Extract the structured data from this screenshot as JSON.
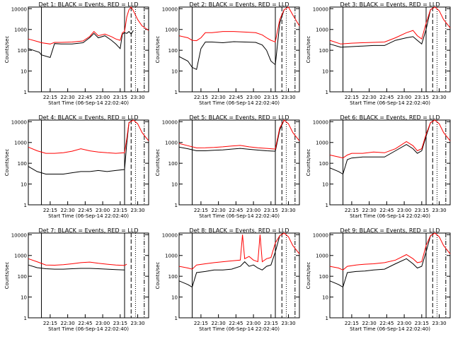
{
  "chart_data": [
    {
      "type": "line",
      "title": "Det 1: BLACK = Events, RED = LLD",
      "ylabel": "Counts/sec",
      "xlabel": "Start Time (06-Sep-14 22:02:40)",
      "x_ticks": [
        "22:15",
        "22:30",
        "22:45",
        "23:00",
        "23:15",
        "23:30"
      ],
      "y_ticks": [
        "1",
        "10",
        "100",
        "1000",
        "10000"
      ],
      "yscale": "log",
      "ylim": [
        1,
        12000
      ],
      "xlim_min": [
        0,
        55
      ],
      "series": [
        {
          "color": "#000000",
          "x": [
            0,
            5,
            6,
            10,
            12,
            15,
            20,
            25,
            28,
            30,
            32,
            35,
            38,
            40,
            42,
            43,
            44,
            45,
            46,
            47,
            48
          ],
          "y": [
            120,
            80,
            60,
            45,
            210,
            200,
            200,
            230,
            400,
            650,
            400,
            500,
            300,
            200,
            120,
            600,
            700,
            650,
            800,
            600,
            900
          ]
        },
        {
          "color": "#ff0000",
          "x": [
            0,
            5,
            6,
            10,
            12,
            15,
            20,
            25,
            28,
            30,
            32,
            35,
            38,
            40,
            42,
            43,
            44,
            45,
            46,
            47,
            48,
            50,
            52,
            55
          ],
          "y": [
            350,
            250,
            230,
            200,
            240,
            240,
            250,
            280,
            450,
            800,
            500,
            600,
            450,
            350,
            300,
            700,
            800,
            4000,
            9000,
            12000,
            8000,
            3000,
            1500,
            900
          ]
        }
      ],
      "markers": {
        "S": 4,
        "F": 6,
        "G": 44,
        "E": 47
      }
    },
    {
      "type": "line",
      "title": "Det 2: BLACK = Events, RED = LLD",
      "ylabel": "Counts/sec",
      "xlabel": "Start Time (06-Sep-14 22:02:40)",
      "x_ticks": [
        "22:15",
        "22:30",
        "22:45",
        "23:00",
        "23:15",
        "23:30"
      ],
      "y_ticks": [
        "1",
        "10",
        "100",
        "1000",
        "10000"
      ],
      "yscale": "log",
      "xlim_min": [
        0,
        55
      ],
      "series": [
        {
          "color": "#000000",
          "x": [
            0,
            4,
            6,
            8,
            10,
            12,
            15,
            20,
            25,
            30,
            35,
            38,
            40,
            42,
            44,
            46,
            48
          ],
          "y": [
            50,
            30,
            15,
            12,
            120,
            250,
            250,
            230,
            260,
            250,
            240,
            180,
            100,
            30,
            20,
            2000,
            9000
          ]
        },
        {
          "color": "#ff0000",
          "x": [
            0,
            4,
            6,
            8,
            10,
            12,
            15,
            20,
            25,
            30,
            35,
            38,
            40,
            42,
            44,
            46,
            48,
            50,
            52,
            55
          ],
          "y": [
            500,
            400,
            300,
            290,
            400,
            700,
            700,
            800,
            800,
            750,
            700,
            550,
            400,
            300,
            250,
            3000,
            9000,
            12000,
            5000,
            1500
          ]
        }
      ],
      "markers": {
        "S": 4,
        "F": 6,
        "G": 44,
        "E": 47
      }
    },
    {
      "type": "line",
      "title": "Det 3: BLACK = Events, RED = LLD",
      "ylabel": "Counts/sec",
      "xlabel": "Start Time (06-Sep-14 22:02:40)",
      "x_ticks": [
        "22:15",
        "22:30",
        "22:45",
        "23:00",
        "23:15",
        "23:30"
      ],
      "y_ticks": [
        "1",
        "10",
        "100",
        "1000",
        "10000"
      ],
      "yscale": "log",
      "xlim_min": [
        0,
        55
      ],
      "series": [
        {
          "color": "#000000",
          "x": [
            0,
            5,
            10,
            15,
            20,
            25,
            30,
            35,
            38,
            40,
            42,
            44,
            46,
            48
          ],
          "y": [
            200,
            140,
            150,
            160,
            170,
            170,
            300,
            400,
            450,
            300,
            200,
            1000,
            9000,
            12000
          ]
        },
        {
          "color": "#ff0000",
          "x": [
            0,
            5,
            10,
            15,
            20,
            25,
            30,
            35,
            38,
            40,
            42,
            44,
            46,
            48,
            50,
            52,
            55
          ],
          "y": [
            300,
            200,
            220,
            230,
            240,
            250,
            400,
            700,
            900,
            500,
            350,
            2000,
            9000,
            12000,
            8000,
            3000,
            1200
          ]
        }
      ],
      "markers": {
        "S": 4,
        "F": 6,
        "G": 44,
        "E": 47
      }
    },
    {
      "type": "line",
      "title": "Det 4: BLACK = Events, RED = LLD",
      "ylabel": "Counts/sec",
      "xlabel": "Start Time (06-Sep-14 22:02:40)",
      "x_ticks": [
        "22:15",
        "22:30",
        "22:45",
        "23:00",
        "23:15",
        "23:30"
      ],
      "y_ticks": [
        "1",
        "10",
        "100",
        "1000",
        "10000"
      ],
      "yscale": "log",
      "xlim_min": [
        0,
        55
      ],
      "series": [
        {
          "color": "#000000",
          "x": [
            0,
            4,
            8,
            12,
            16,
            20,
            24,
            28,
            32,
            36,
            40,
            44,
            45,
            46,
            48
          ],
          "y": [
            70,
            40,
            30,
            30,
            30,
            35,
            40,
            40,
            45,
            40,
            45,
            50,
            900,
            9000,
            12000
          ]
        },
        {
          "color": "#ff0000",
          "x": [
            0,
            4,
            8,
            12,
            16,
            20,
            24,
            28,
            32,
            36,
            40,
            44,
            45,
            46,
            48,
            50,
            52,
            55
          ],
          "y": [
            600,
            400,
            300,
            300,
            320,
            380,
            500,
            400,
            350,
            320,
            300,
            320,
            1500,
            9000,
            12000,
            8000,
            3000,
            1200
          ]
        }
      ],
      "markers": {
        "S": 1,
        "F": 6,
        "G": 44,
        "E": 47
      }
    },
    {
      "type": "line",
      "title": "Det 5: BLACK = Events, RED = LLD",
      "ylabel": "Counts/sec",
      "xlabel": "Start Time (06-Sep-14 22:02:40)",
      "x_ticks": [
        "22:15",
        "22:30",
        "22:45",
        "23:00",
        "23:15",
        "23:30"
      ],
      "y_ticks": [
        "1",
        "10",
        "100",
        "1000",
        "10000"
      ],
      "yscale": "log",
      "xlim_min": [
        0,
        55
      ],
      "series": [
        {
          "color": "#000000",
          "x": [
            0,
            4,
            8,
            12,
            16,
            20,
            24,
            28,
            32,
            36,
            40,
            44,
            46,
            48
          ],
          "y": [
            600,
            500,
            400,
            400,
            420,
            440,
            480,
            520,
            470,
            430,
            400,
            380,
            4000,
            12000
          ]
        },
        {
          "color": "#ff0000",
          "x": [
            0,
            4,
            8,
            12,
            16,
            20,
            24,
            28,
            32,
            36,
            40,
            44,
            46,
            48,
            50,
            52,
            55
          ],
          "y": [
            900,
            700,
            550,
            560,
            580,
            620,
            680,
            720,
            620,
            560,
            520,
            480,
            5000,
            12000,
            8000,
            3000,
            1200
          ]
        }
      ],
      "markers": {
        "S": 1,
        "F": 6,
        "G": 44,
        "E": 47
      }
    },
    {
      "type": "line",
      "title": "Det 6: BLACK = Events, RED = LLD",
      "ylabel": "Counts/sec",
      "xlabel": "Start Time (06-Sep-14 22:02:40)",
      "x_ticks": [
        "22:15",
        "22:30",
        "22:45",
        "23:00",
        "23:15",
        "23:30"
      ],
      "y_ticks": [
        "1",
        "10",
        "100",
        "1000",
        "10000"
      ],
      "yscale": "log",
      "xlim_min": [
        0,
        55
      ],
      "series": [
        {
          "color": "#000000",
          "x": [
            0,
            4,
            6,
            8,
            10,
            15,
            20,
            25,
            30,
            35,
            38,
            40,
            42,
            44,
            46,
            48
          ],
          "y": [
            60,
            40,
            30,
            150,
            180,
            200,
            200,
            200,
            400,
            800,
            500,
            300,
            400,
            2000,
            9000,
            12000
          ]
        },
        {
          "color": "#ff0000",
          "x": [
            0,
            4,
            6,
            8,
            10,
            15,
            20,
            25,
            30,
            35,
            38,
            40,
            42,
            44,
            46,
            48,
            50,
            52,
            55
          ],
          "y": [
            250,
            200,
            180,
            250,
            300,
            300,
            350,
            320,
            500,
            1100,
            700,
            400,
            500,
            2500,
            9000,
            12000,
            8000,
            3000,
            1200
          ]
        }
      ],
      "markers": {
        "S": 4,
        "F": 6,
        "G": 44,
        "E": 47
      }
    },
    {
      "type": "line",
      "title": "Det 7: BLACK = Events, RED = LLD",
      "ylabel": "Counts/sec",
      "xlabel": "Start Time (06-Sep-14 22:02:40)",
      "x_ticks": [
        "22:15",
        "22:30",
        "22:45",
        "23:00",
        "23:15",
        "23:30"
      ],
      "y_ticks": [
        "1",
        "10",
        "100",
        "1000",
        "10000"
      ],
      "yscale": "log",
      "xlim_min": [
        0,
        55
      ],
      "series": [
        {
          "color": "#000000",
          "x": [
            0,
            4,
            8,
            12,
            16,
            20,
            24,
            28,
            32,
            36,
            40,
            44
          ],
          "y": [
            350,
            260,
            230,
            220,
            220,
            230,
            240,
            240,
            230,
            220,
            210,
            200
          ]
        },
        {
          "color": "#ff0000",
          "x": [
            0,
            4,
            8,
            12,
            16,
            20,
            24,
            28,
            32,
            36,
            40,
            44,
            45
          ],
          "y": [
            700,
            500,
            350,
            340,
            360,
            400,
            450,
            480,
            420,
            380,
            350,
            330,
            380
          ]
        }
      ],
      "markers": {
        "S": 1,
        "F": 6,
        "G": 44,
        "E": 47
      }
    },
    {
      "type": "line",
      "title": "Det 8: BLACK = Events, RED = LLD",
      "ylabel": "Counts/sec",
      "xlabel": "Start Time (06-Sep-14 22:02:40)",
      "x_ticks": [
        "22:15",
        "22:30",
        "22:45",
        "23:00",
        "23:15",
        "23:30"
      ],
      "y_ticks": [
        "1",
        "10",
        "100",
        "1000",
        "10000"
      ],
      "yscale": "log",
      "xlim_min": [
        0,
        55
      ],
      "series": [
        {
          "color": "#000000",
          "x": [
            0,
            4,
            6,
            8,
            12,
            16,
            20,
            24,
            28,
            30,
            32,
            34,
            36,
            38,
            40,
            42,
            44,
            46,
            48
          ],
          "y": [
            60,
            40,
            30,
            150,
            170,
            200,
            200,
            220,
            300,
            500,
            300,
            350,
            250,
            200,
            300,
            350,
            1500,
            9000,
            12000
          ]
        },
        {
          "color": "#ff0000",
          "x": [
            0,
            4,
            6,
            8,
            12,
            16,
            20,
            24,
            28,
            29,
            30,
            32,
            34,
            36,
            37,
            38,
            40,
            42,
            44,
            46,
            48,
            50,
            52,
            55
          ],
          "y": [
            300,
            250,
            220,
            350,
            400,
            450,
            500,
            550,
            600,
            10000,
            700,
            900,
            600,
            500,
            10000,
            500,
            700,
            800,
            4000,
            9000,
            12000,
            8000,
            3000,
            1200
          ]
        }
      ],
      "markers": {
        "S": 4,
        "F": 6,
        "G": 44,
        "E": 47
      }
    },
    {
      "type": "line",
      "title": "Det 9: BLACK = Events, RED = LLD",
      "ylabel": "Counts/sec",
      "xlabel": "Start Time (06-Sep-14 22:02:40)",
      "x_ticks": [
        "22:15",
        "22:30",
        "22:45",
        "23:00",
        "23:15",
        "23:30"
      ],
      "y_ticks": [
        "1",
        "10",
        "100",
        "1000",
        "10000"
      ],
      "yscale": "log",
      "xlim_min": [
        0,
        55
      ],
      "series": [
        {
          "color": "#000000",
          "x": [
            0,
            4,
            6,
            8,
            12,
            16,
            20,
            25,
            30,
            35,
            38,
            40,
            42,
            44,
            46,
            48
          ],
          "y": [
            60,
            40,
            30,
            150,
            170,
            180,
            200,
            220,
            400,
            700,
            400,
            250,
            300,
            1500,
            9000,
            12000
          ]
        },
        {
          "color": "#ff0000",
          "x": [
            0,
            4,
            6,
            8,
            12,
            16,
            20,
            25,
            30,
            35,
            38,
            40,
            42,
            44,
            46,
            48,
            50,
            52,
            55
          ],
          "y": [
            300,
            250,
            200,
            300,
            350,
            380,
            400,
            450,
            600,
            1100,
            700,
            450,
            500,
            3000,
            9000,
            12000,
            8000,
            3000,
            1200
          ]
        }
      ],
      "markers": {
        "S": 4,
        "F": 6,
        "G": 44,
        "E": 47
      }
    }
  ]
}
